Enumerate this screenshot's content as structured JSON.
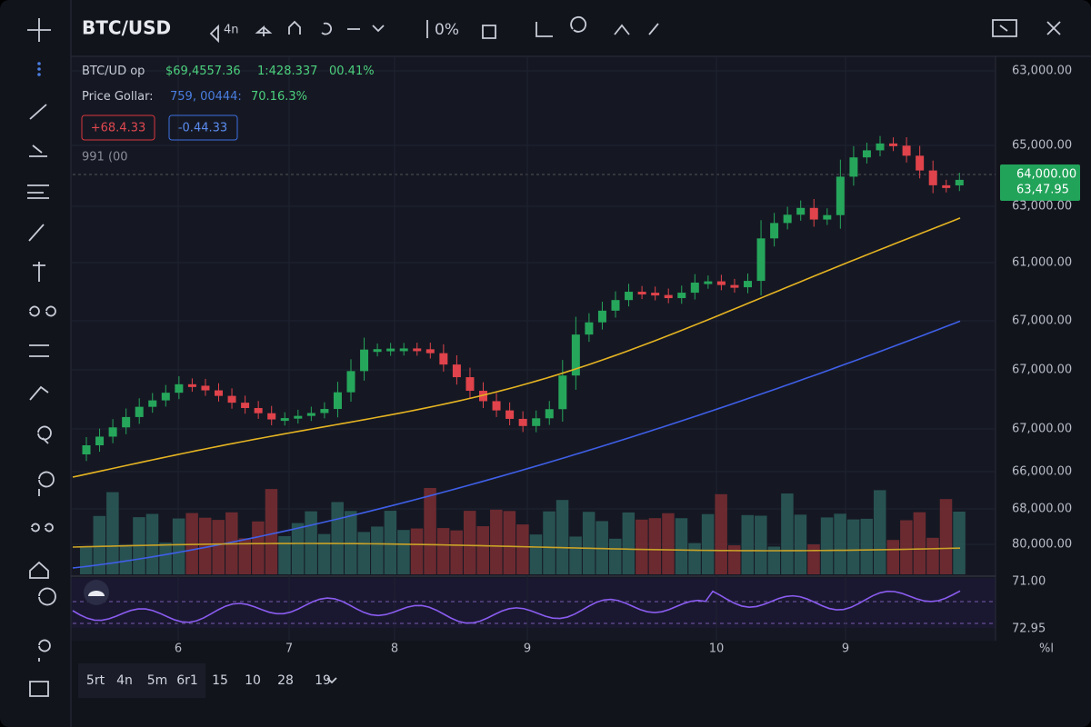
{
  "header": {
    "title": "BTC/USD",
    "toolbar": [
      "4n",
      "0%"
    ]
  },
  "info": {
    "line1": {
      "label": "BTC/UD op",
      "price": "$69,4557.36",
      "change": "1:428.337",
      "percent": "00.41%"
    },
    "line2": {
      "label": "Price Gollar:",
      "value": "759, 00444:",
      "percent": "70.16.3%"
    },
    "badges": [
      "+68.4.33",
      "-0.44.33"
    ],
    "line3": "991 (00"
  },
  "price_axis": [
    "63,000.00",
    "65,000.00",
    "63,000.00",
    "61,000.00",
    "67,000.00",
    "67,000.00",
    "67,000.00",
    "66,000.00",
    "68,000.00",
    "80,000.00"
  ],
  "price_tag": [
    "64,000.00",
    "63,47.95"
  ],
  "rsi_axis": [
    "71.00",
    "72.95"
  ],
  "time_axis": [
    "6",
    "7",
    "8",
    "9",
    "10",
    "9"
  ],
  "time_axis_unit": "%l",
  "timeframes": [
    "5rt",
    "4n",
    "5m",
    "6r1",
    "15",
    "10",
    "28",
    "19"
  ]
}
